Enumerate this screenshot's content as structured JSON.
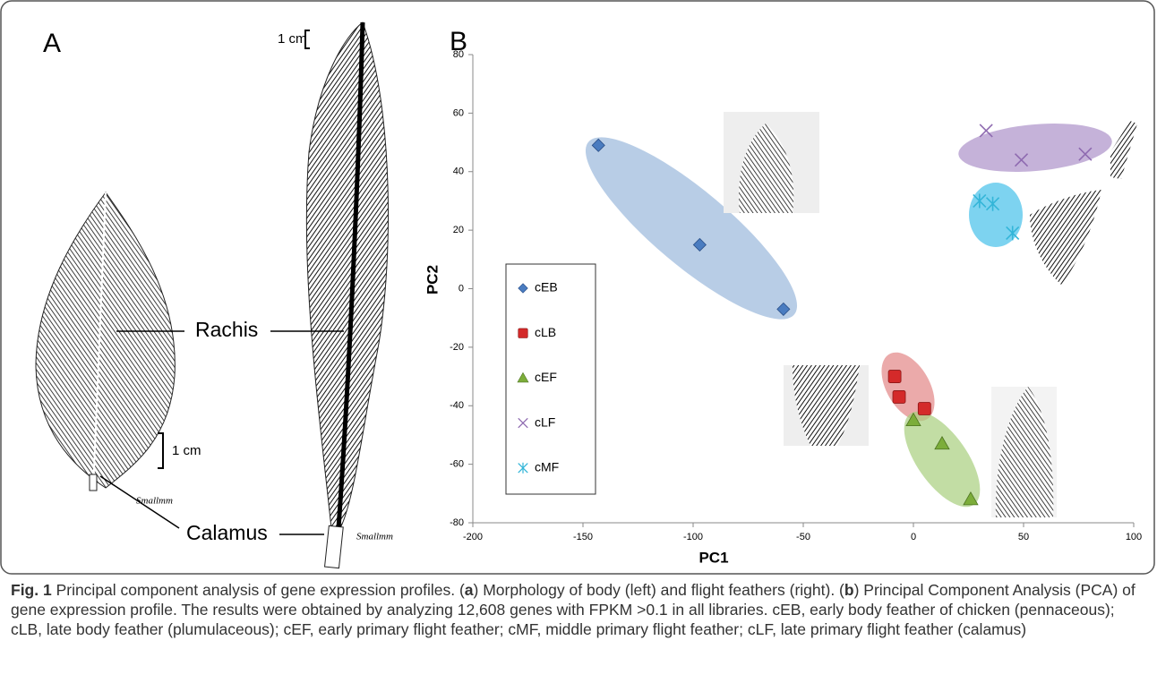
{
  "panel_a": {
    "label": "A",
    "scale_top": "1 cm",
    "scale_left": "1 cm",
    "rachis": "Rachis",
    "calamus": "Calamus",
    "signature_left": "Smallmm",
    "signature_right": "Smallmm"
  },
  "chart_data": {
    "type": "scatter",
    "panel_label": "B",
    "x_label": "PC1",
    "y_label": "PC2",
    "xlim": [
      -200,
      100
    ],
    "xticks": [
      -200,
      -150,
      -100,
      -50,
      0,
      50,
      100
    ],
    "ylim": [
      -80,
      80
    ],
    "yticks": [
      -80,
      -60,
      -40,
      -20,
      0,
      20,
      40,
      60,
      80
    ],
    "grid": false,
    "series": [
      {
        "name": "cEB",
        "color": "#4a7cc0",
        "marker": "diamond",
        "x": [
          -143,
          -97,
          -59
        ],
        "values": [
          49,
          15,
          -7
        ]
      },
      {
        "name": "cLB",
        "color": "#d42a2a",
        "marker": "square",
        "x": [
          -8.5,
          -6.5,
          5
        ],
        "values": [
          -30,
          -37,
          -41
        ]
      },
      {
        "name": "cEF",
        "color": "#7cad3a",
        "marker": "triangle",
        "x": [
          0,
          13,
          26
        ],
        "values": [
          -45,
          -53,
          -72
        ]
      },
      {
        "name": "cLF",
        "color": "#8e6ab0",
        "marker": "x",
        "x": [
          33,
          49,
          78
        ],
        "values": [
          54,
          44,
          46
        ]
      },
      {
        "name": "cMF",
        "color": "#33b5d8",
        "marker": "asterisk",
        "x": [
          30,
          36,
          45
        ],
        "values": [
          30,
          29,
          19
        ]
      }
    ]
  },
  "caption": {
    "label": "Fig. 1",
    "segments": [
      " Principal component analysis of gene expression profiles. (",
      "a",
      ") Morphology of body (left) and flight feathers (right). (",
      "b",
      ") Principal Component Analysis (PCA) of gene expression profile. The results were obtained by analyzing 12,608 genes with FPKM >0.1 in all libraries. cEB, early body feather of chicken (pennaceous); cLB, late body feather (plumulaceous); cEF, early primary flight feather; cMF, middle primary flight feather; cLF, late primary flight feather (calamus)"
    ]
  }
}
